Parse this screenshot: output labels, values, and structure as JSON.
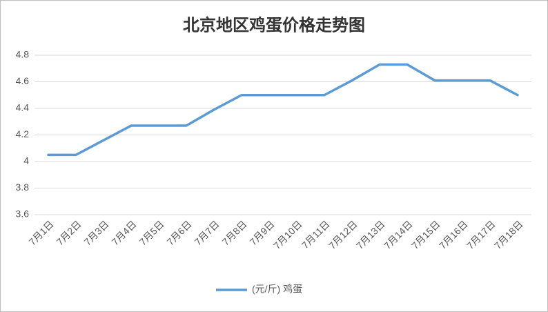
{
  "chart_data": {
    "type": "line",
    "title": "北京地区鸡蛋价格走势图",
    "categories": [
      "7月1日",
      "7月2日",
      "7月3日",
      "7月4日",
      "7月5日",
      "7月6日",
      "7月7日",
      "7月8日",
      "7月9日",
      "7月10日",
      "7月11日",
      "7月12日",
      "7月13日",
      "7月14日",
      "7月15日",
      "7月16日",
      "7月17日",
      "7月18日"
    ],
    "series": [
      {
        "name": "(元/斤) 鸡蛋",
        "color": "#5b9bd5",
        "values": [
          4.05,
          4.05,
          4.16,
          4.27,
          4.27,
          4.27,
          4.39,
          4.5,
          4.5,
          4.5,
          4.5,
          4.61,
          4.73,
          4.73,
          4.61,
          4.61,
          4.61,
          4.5
        ]
      }
    ],
    "ylim": [
      3.6,
      4.8
    ],
    "yticks": [
      3.6,
      3.8,
      4,
      4.2,
      4.4,
      4.6,
      4.8
    ],
    "grid": true,
    "legend": "bottom"
  }
}
